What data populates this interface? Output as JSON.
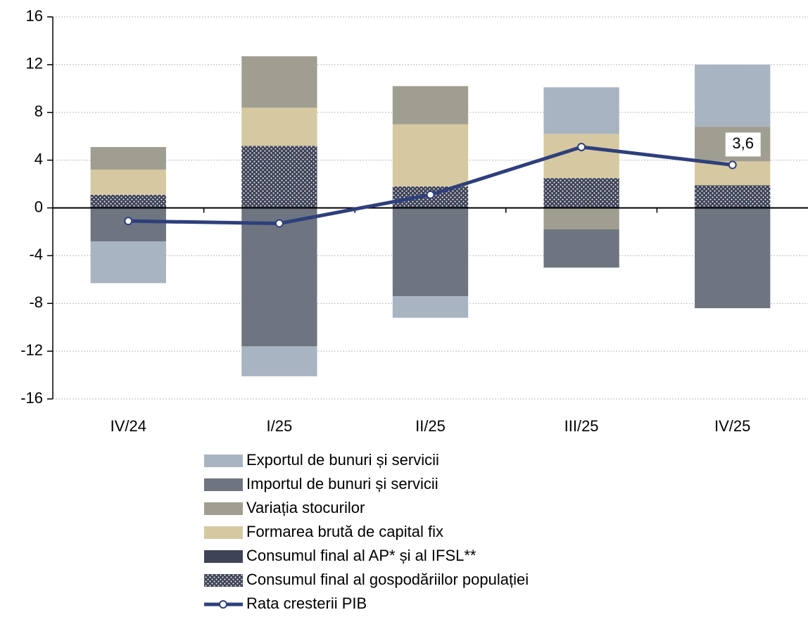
{
  "chart_data": {
    "type": "bar",
    "stacked": true,
    "categories": [
      "IV/24",
      "I/25",
      "II/25",
      "III/25",
      "IV/25"
    ],
    "ylim": [
      -16,
      16
    ],
    "yticks": [
      -16,
      -12,
      -8,
      -4,
      0,
      4,
      8,
      12,
      16
    ],
    "grid": true,
    "series": [
      {
        "name": "Exportul de bunuri și servicii",
        "color": "#a9b4c2",
        "values": [
          -3.5,
          -2.5,
          -1.8,
          3.9,
          5.2
        ]
      },
      {
        "name": "Importul de bunuri și servicii",
        "color": "#6e7580",
        "values": [
          -2.8,
          -11.6,
          -7.4,
          -3.2,
          -8.4
        ]
      },
      {
        "name": "Variația stocurilor",
        "color": "#a09e90",
        "values": [
          1.9,
          4.3,
          3.2,
          -1.8,
          2.9
        ]
      },
      {
        "name": "Formarea brută de capital fix",
        "color": "#d6c8a0",
        "values": [
          2.1,
          3.2,
          5.2,
          3.7,
          2.0
        ]
      },
      {
        "name": "Consumul final al AP* și al IFSL**",
        "color": "#3e4357",
        "values": [
          0,
          0,
          0,
          0,
          0
        ]
      },
      {
        "name": "Consumul final al  gospodăriilor populației",
        "color": "#3e4357",
        "pattern": "dots",
        "values": [
          1.1,
          5.2,
          1.8,
          2.5,
          1.9
        ]
      },
      {
        "name": "Rata cresterii PIB",
        "type": "line",
        "color": "#2e3f7c",
        "values": [
          -1.1,
          -1.3,
          1.1,
          5.1,
          3.6
        ],
        "value_labels": [
          null,
          null,
          null,
          null,
          "3,6"
        ]
      }
    ]
  }
}
